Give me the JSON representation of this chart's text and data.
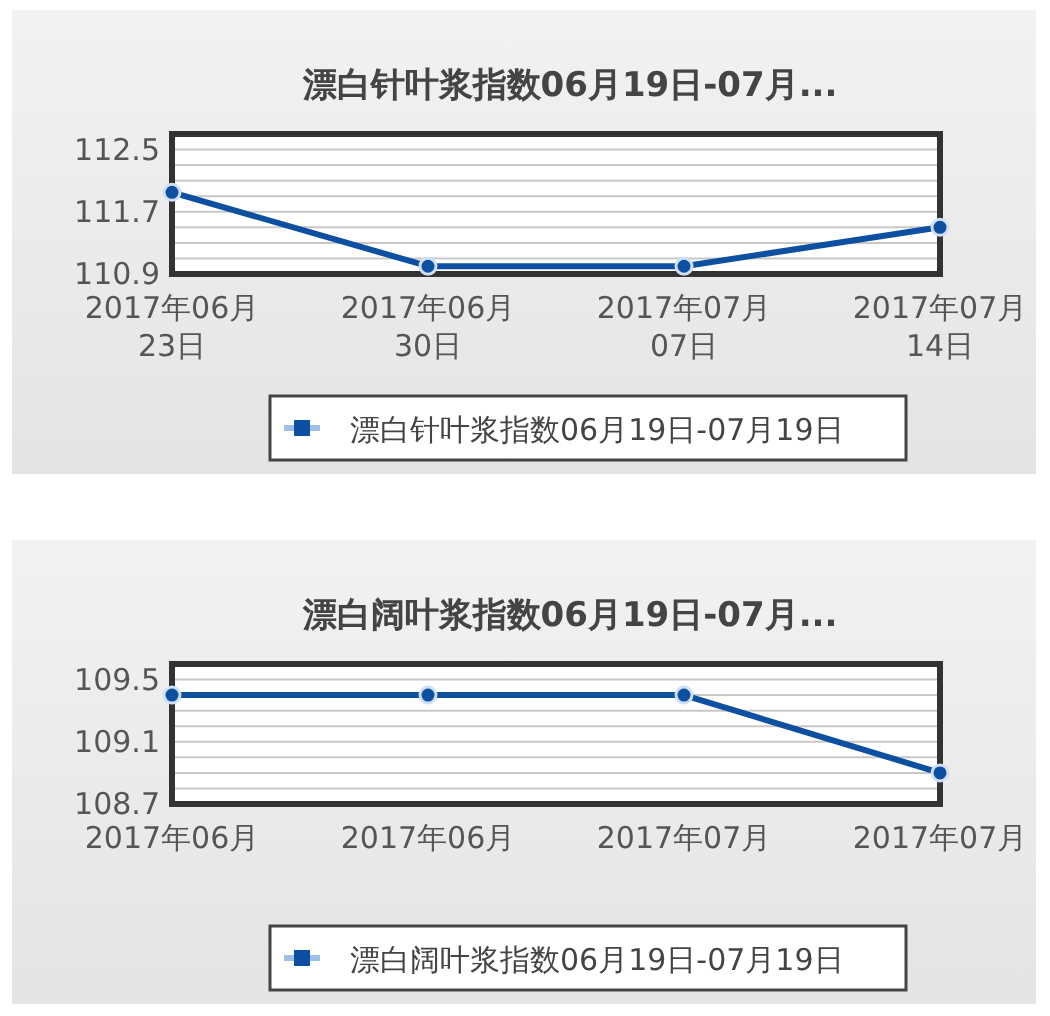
{
  "chart_data": [
    {
      "type": "line",
      "title": "漂白针叶浆指数06月19日-07月...",
      "categories": [
        "2017年06月\n23日",
        "2017年06月\n30日",
        "2017年07月\n07日",
        "2017年07月\n14日"
      ],
      "series": [
        {
          "name": "漂白针叶浆指数06月19日-07月19日",
          "color": "#0d4fa0",
          "values": [
            111.95,
            111.0,
            111.0,
            111.5
          ]
        }
      ],
      "ylim": [
        110.9,
        112.7
      ],
      "yticks": [
        110.9,
        {
          "value": 111.1,
          "label": null
        },
        {
          "value": 111.3,
          "label": null
        },
        {
          "value": 111.5,
          "label": null
        },
        111.7,
        {
          "value": 111.9,
          "label": null
        },
        {
          "value": 112.1,
          "label": null
        },
        {
          "value": 112.3,
          "label": null
        },
        112.5
      ],
      "grid": "y",
      "legend": "bottom",
      "marker": "circle"
    },
    {
      "type": "line",
      "title": "漂白阔叶浆指数06月19日-07月...",
      "categories": [
        "2017年06月",
        "2017年06月",
        "2017年07月",
        "2017年07月"
      ],
      "series": [
        {
          "name": "漂白阔叶浆指数06月19日-07月19日",
          "color": "#0d4fa0",
          "values": [
            109.4,
            109.4,
            109.4,
            108.9
          ]
        }
      ],
      "ylim": [
        108.7,
        109.6
      ],
      "yticks": [
        108.7,
        {
          "value": 108.8,
          "label": null
        },
        {
          "value": 108.9,
          "label": null
        },
        {
          "value": 109.0,
          "label": null
        },
        109.1,
        {
          "value": 109.2,
          "label": null
        },
        {
          "value": 109.3,
          "label": null
        },
        {
          "value": 109.4,
          "label": null
        },
        109.5
      ],
      "grid": "y",
      "legend": "bottom",
      "marker": "circle"
    }
  ]
}
